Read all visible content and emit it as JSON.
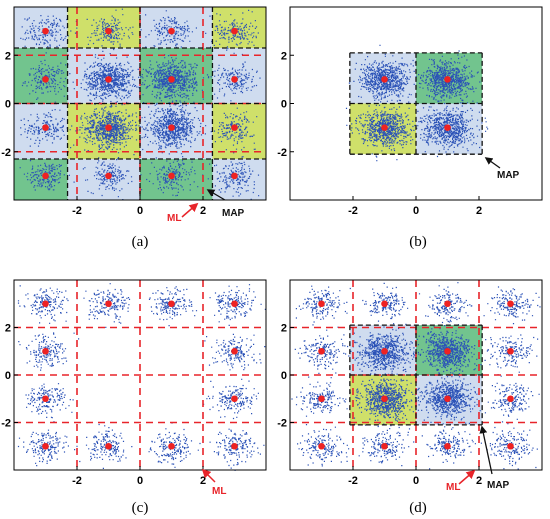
{
  "colors": {
    "light_blue": "#cfdcef",
    "yellow_green": "#cfe06a",
    "green": "#72c48e",
    "points": "#2b52b7",
    "centers": "#ee2222",
    "ml_boundary": "#e8242a",
    "map_boundary": "#111111",
    "ml_label": "#e8242a",
    "map_label": "#111111"
  },
  "chart_data": [
    {
      "type": "scatter",
      "caption": "(a)",
      "xticks": [
        "-2",
        "0",
        "2"
      ],
      "yticks": [
        "2",
        "0",
        "-2"
      ],
      "xlim": [
        -4,
        4
      ],
      "ylim": [
        -4,
        4
      ],
      "symbol_centers_x": [
        -3,
        -1,
        1,
        3
      ],
      "symbol_centers_y": [
        -3,
        -1,
        1,
        3
      ],
      "ml_boundaries": [
        -2,
        0,
        2
      ],
      "map_boundaries_x": [
        -2.3,
        0,
        2.3
      ],
      "map_boundaries_y": [
        -2.3,
        0,
        2.3
      ],
      "region_fill_grid": [
        [
          "light_blue",
          "yellow_green",
          "light_blue",
          "yellow_green"
        ],
        [
          "green",
          "light_blue",
          "green",
          "light_blue"
        ],
        [
          "light_blue",
          "yellow_green",
          "light_blue",
          "yellow_green"
        ],
        [
          "green",
          "light_blue",
          "green",
          "light_blue"
        ]
      ],
      "annotations": [
        {
          "text": "ML",
          "color_key": "ml_label"
        },
        {
          "text": "MAP",
          "color_key": "map_label"
        }
      ]
    },
    {
      "type": "scatter",
      "caption": "(b)",
      "xticks": [
        "-2",
        "0",
        "2"
      ],
      "yticks": [
        "2",
        "0",
        "-2"
      ],
      "xlim": [
        -4,
        4
      ],
      "ylim": [
        -4,
        4
      ],
      "symbol_centers_x": [
        -1,
        1
      ],
      "symbol_centers_y": [
        -1,
        1
      ],
      "map_boundaries_x": [
        -2.1,
        0,
        2.1
      ],
      "map_boundaries_y": [
        -2.1,
        0,
        2.1
      ],
      "region_fill_grid": [
        [
          "light_blue",
          "green"
        ],
        [
          "yellow_green",
          "light_blue"
        ]
      ],
      "annotations": [
        {
          "text": "MAP",
          "color_key": "map_label"
        }
      ]
    },
    {
      "type": "scatter",
      "caption": "(c)",
      "xticks": [
        "-2",
        "0",
        "2"
      ],
      "yticks": [
        "2",
        "0",
        "-2"
      ],
      "xlim": [
        -4,
        4
      ],
      "ylim": [
        -4,
        4
      ],
      "symbol_centers_x": [
        -3,
        -1,
        1,
        3
      ],
      "symbol_centers_y": [
        -3,
        -1,
        1,
        3
      ],
      "omitted_symbols": [
        [
          -1,
          -1
        ],
        [
          -1,
          1
        ],
        [
          1,
          -1
        ],
        [
          1,
          1
        ]
      ],
      "ml_boundaries": [
        -2,
        0,
        2
      ],
      "annotations": [
        {
          "text": "ML",
          "color_key": "ml_label"
        }
      ]
    },
    {
      "type": "scatter",
      "caption": "(d)",
      "xticks": [
        "-2",
        "0",
        "2"
      ],
      "yticks": [
        "2",
        "0",
        "-2"
      ],
      "xlim": [
        -4,
        4
      ],
      "ylim": [
        -4,
        4
      ],
      "symbol_centers_x": [
        -3,
        -1,
        1,
        3
      ],
      "symbol_centers_y": [
        -3,
        -1,
        1,
        3
      ],
      "ml_boundaries": [
        -2,
        0,
        2
      ],
      "map_boundaries_x": [
        -2.1,
        0,
        2.1
      ],
      "map_boundaries_y": [
        -2.1,
        0,
        2.1
      ],
      "region_fill_grid": [
        [
          "light_blue",
          "green"
        ],
        [
          "yellow_green",
          "light_blue"
        ]
      ],
      "annotations": [
        {
          "text": "ML",
          "color_key": "ml_label"
        },
        {
          "text": "MAP",
          "color_key": "map_label"
        }
      ]
    }
  ]
}
